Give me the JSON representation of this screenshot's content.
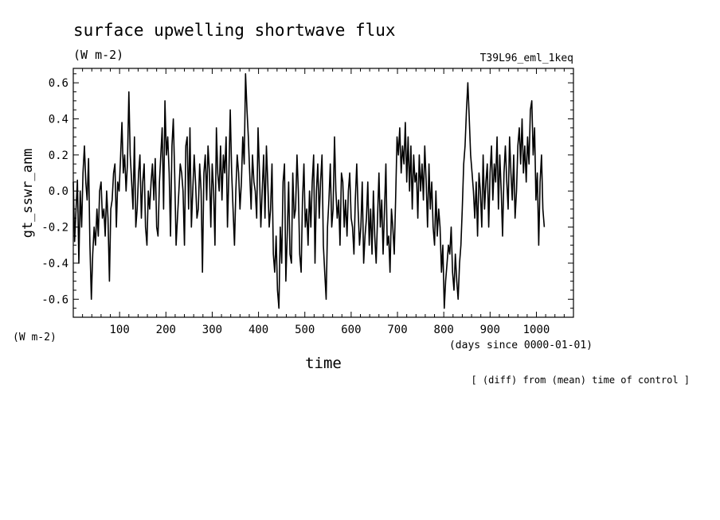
{
  "chart_data": {
    "type": "line",
    "title": "surface upwelling shortwave flux",
    "units": "(W m-2)",
    "experiment": "T39L96_eml_1keq",
    "ylabel": "gt_sswr_anm",
    "yunits": "(W m-2)",
    "xlabel": "time",
    "xunits": "(days since 0000-01-01)",
    "footnote": "[ (diff) from (mean) time of control ]",
    "xlim": [
      0,
      1080
    ],
    "ylim": [
      -0.7,
      0.68
    ],
    "x_ticks": [
      100,
      200,
      300,
      400,
      500,
      600,
      700,
      800,
      900,
      1000
    ],
    "y_ticks": [
      -0.6,
      -0.4,
      -0.2,
      0.0,
      0.2,
      0.4,
      0.6
    ],
    "y_tick_labels": [
      "-0.6",
      "-0.4",
      "-0.2",
      "0.0",
      "0.2",
      "0.4",
      "0.6"
    ],
    "grid": false,
    "line_color": "#000000",
    "series": [
      {
        "x_start": 0,
        "x_step": 3,
        "values": [
          0.05,
          -0.28,
          -0.1,
          0.06,
          -0.4,
          0.0,
          -0.2,
          0.1,
          0.25,
          0.05,
          -0.05,
          0.18,
          -0.3,
          -0.6,
          -0.35,
          -0.2,
          -0.3,
          -0.1,
          -0.25,
          0.0,
          0.05,
          -0.15,
          -0.1,
          -0.25,
          0.0,
          -0.15,
          -0.5,
          -0.1,
          -0.05,
          0.1,
          0.15,
          -0.2,
          0.05,
          0.0,
          0.18,
          0.38,
          0.1,
          0.2,
          0.0,
          0.15,
          0.55,
          0.2,
          0.05,
          -0.1,
          0.3,
          -0.2,
          -0.1,
          0.1,
          0.2,
          -0.15,
          0.05,
          0.15,
          -0.2,
          -0.3,
          0.0,
          -0.1,
          0.05,
          0.15,
          -0.05,
          0.18,
          -0.2,
          -0.25,
          0.05,
          0.2,
          0.35,
          -0.1,
          0.5,
          0.2,
          0.3,
          0.1,
          -0.25,
          0.25,
          0.4,
          0.1,
          -0.3,
          -0.15,
          0.0,
          0.15,
          0.1,
          0.0,
          -0.3,
          0.25,
          0.3,
          -0.1,
          0.35,
          -0.2,
          0.0,
          0.2,
          0.05,
          -0.15,
          -0.1,
          0.15,
          0.0,
          -0.45,
          0.1,
          0.2,
          -0.05,
          0.25,
          0.1,
          -0.2,
          0.15,
          0.0,
          -0.3,
          0.35,
          0.1,
          0.0,
          0.25,
          -0.05,
          0.2,
          0.1,
          0.3,
          -0.2,
          0.1,
          0.45,
          0.1,
          -0.1,
          -0.3,
          0.0,
          0.2,
          0.1,
          -0.1,
          0.05,
          0.3,
          0.15,
          0.65,
          0.45,
          0.3,
          0.1,
          -0.1,
          0.2,
          0.05,
          0.0,
          -0.15,
          0.35,
          0.1,
          -0.2,
          0.0,
          0.2,
          -0.15,
          0.25,
          0.05,
          -0.2,
          -0.1,
          0.15,
          -0.35,
          -0.45,
          -0.25,
          -0.55,
          -0.65,
          -0.2,
          -0.4,
          0.05,
          0.15,
          -0.5,
          -0.25,
          0.05,
          -0.35,
          -0.4,
          0.1,
          -0.15,
          -0.1,
          0.2,
          0.0,
          -0.35,
          -0.45,
          -0.05,
          0.15,
          -0.2,
          -0.1,
          -0.3,
          0.0,
          -0.2,
          0.05,
          0.2,
          -0.4,
          0.0,
          0.15,
          -0.15,
          0.05,
          0.2,
          -0.3,
          -0.45,
          -0.6,
          -0.2,
          -0.05,
          0.15,
          -0.2,
          -0.1,
          0.3,
          0.0,
          -0.15,
          -0.05,
          -0.3,
          0.1,
          0.05,
          -0.2,
          -0.05,
          -0.25,
          0.0,
          0.1,
          -0.15,
          -0.2,
          -0.35,
          -0.05,
          0.15,
          -0.1,
          -0.3,
          -0.2,
          0.05,
          -0.4,
          -0.25,
          -0.15,
          0.05,
          -0.3,
          -0.1,
          -0.35,
          0.0,
          -0.25,
          -0.4,
          -0.15,
          0.1,
          -0.2,
          -0.05,
          -0.35,
          -0.1,
          0.15,
          -0.3,
          -0.25,
          -0.45,
          -0.1,
          -0.2,
          -0.35,
          -0.05,
          0.3,
          0.2,
          0.35,
          0.1,
          0.25,
          0.15,
          0.38,
          0.05,
          0.3,
          0.0,
          0.25,
          -0.1,
          0.2,
          0.05,
          0.1,
          -0.15,
          0.2,
          0.0,
          0.15,
          -0.05,
          0.25,
          0.05,
          -0.2,
          0.15,
          -0.1,
          0.05,
          -0.2,
          -0.3,
          0.0,
          -0.25,
          -0.1,
          -0.2,
          -0.45,
          -0.3,
          -0.65,
          -0.5,
          -0.4,
          -0.3,
          -0.35,
          -0.2,
          -0.45,
          -0.55,
          -0.35,
          -0.5,
          -0.6,
          -0.4,
          -0.3,
          -0.1,
          0.15,
          0.25,
          0.45,
          0.6,
          0.4,
          0.2,
          0.1,
          0.0,
          -0.15,
          0.05,
          -0.25,
          0.1,
          0.0,
          -0.2,
          0.2,
          -0.1,
          0.05,
          0.15,
          -0.2,
          0.1,
          0.25,
          -0.05,
          0.15,
          0.05,
          0.3,
          -0.1,
          0.2,
          0.0,
          -0.25,
          0.1,
          0.25,
          0.05,
          -0.1,
          0.3,
          0.1,
          -0.05,
          0.2,
          -0.15,
          0.0,
          0.25,
          0.35,
          0.15,
          0.4,
          0.1,
          0.25,
          0.05,
          0.3,
          0.15,
          0.45,
          0.5,
          0.2,
          0.35,
          -0.05,
          0.1,
          -0.3,
          0.05,
          0.2,
          -0.1,
          -0.2
        ]
      }
    ]
  }
}
